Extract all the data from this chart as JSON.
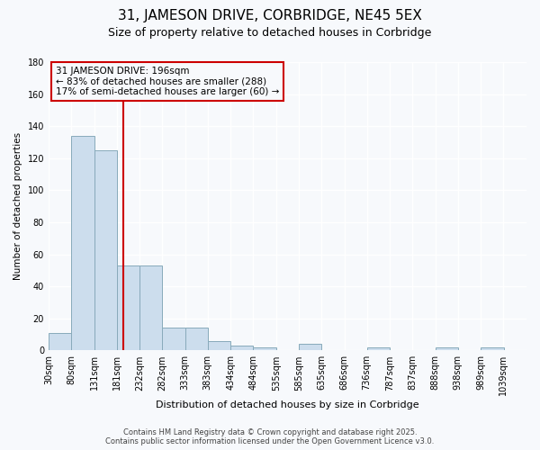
{
  "title_line1": "31, JAMESON DRIVE, CORBRIDGE, NE45 5EX",
  "title_line2": "Size of property relative to detached houses in Corbridge",
  "xlabel": "Distribution of detached houses by size in Corbridge",
  "ylabel": "Number of detached properties",
  "bin_labels": [
    "30sqm",
    "80sqm",
    "131sqm",
    "181sqm",
    "232sqm",
    "282sqm",
    "333sqm",
    "383sqm",
    "434sqm",
    "484sqm",
    "535sqm",
    "585sqm",
    "635sqm",
    "686sqm",
    "736sqm",
    "787sqm",
    "837sqm",
    "888sqm",
    "938sqm",
    "989sqm",
    "1039sqm"
  ],
  "bin_edges": [
    30,
    80,
    131,
    181,
    232,
    282,
    333,
    383,
    434,
    484,
    535,
    585,
    635,
    686,
    736,
    787,
    837,
    888,
    938,
    989,
    1039
  ],
  "bar_heights": [
    11,
    134,
    125,
    53,
    53,
    14,
    14,
    6,
    3,
    2,
    0,
    4,
    0,
    0,
    2,
    0,
    0,
    2,
    0,
    2
  ],
  "bar_color": "#ccdded",
  "bar_edgecolor": "#88aabb",
  "vline_x": 196,
  "vline_color": "#cc0000",
  "annotation_text": "31 JAMESON DRIVE: 196sqm\n← 83% of detached houses are smaller (288)\n17% of semi-detached houses are larger (60) →",
  "annotation_box_color": "#cc0000",
  "ylim": [
    0,
    180
  ],
  "yticks": [
    0,
    20,
    40,
    60,
    80,
    100,
    120,
    140,
    160,
    180
  ],
  "bg_color": "#f7f9fc",
  "grid_color": "#ffffff",
  "footer_line1": "Contains HM Land Registry data © Crown copyright and database right 2025.",
  "footer_line2": "Contains public sector information licensed under the Open Government Licence v3.0."
}
